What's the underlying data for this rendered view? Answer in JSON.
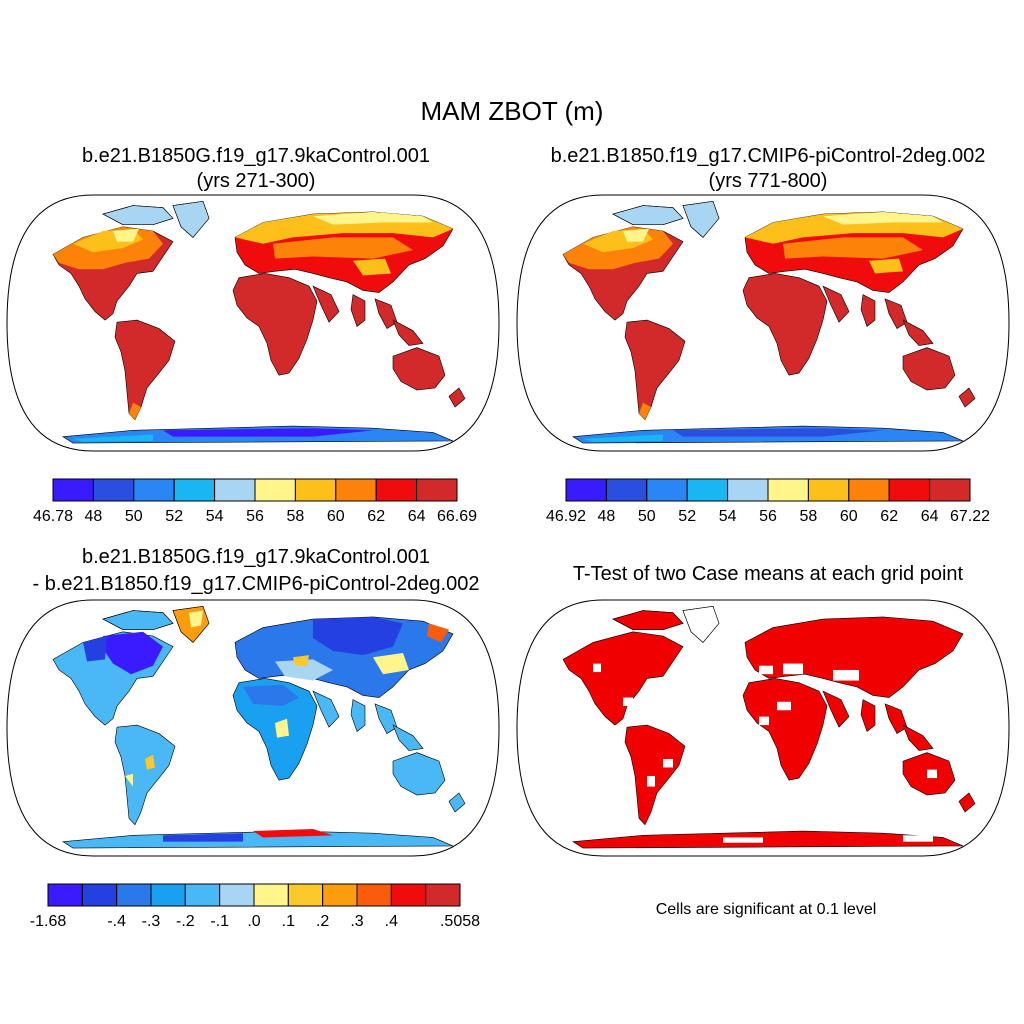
{
  "figure": {
    "title": "MAM ZBOT (m)"
  },
  "panels": [
    {
      "id": "case1",
      "title_line1": "b.e21.B1850G.f19_g17.9kaControl.001",
      "title_line2": "(yrs 271-300)",
      "colorbar": {
        "colors": [
          "#3a1bff",
          "#2a4ee0",
          "#2b86f5",
          "#18b6f3",
          "#a8d5f2",
          "#fff58a",
          "#fdbf1a",
          "#fd8209",
          "#f00c0c",
          "#d22a2a"
        ],
        "labels": [
          "46.78",
          "48",
          "50",
          "52",
          "54",
          "56",
          "58",
          "60",
          "62",
          "64",
          "66.69"
        ]
      }
    },
    {
      "id": "case2",
      "title_line1": "b.e21.B1850.f19_g17.CMIP6-piControl-2deg.002",
      "title_line2": "(yrs 771-800)",
      "colorbar": {
        "colors": [
          "#3a1bff",
          "#2a4ee0",
          "#2b86f5",
          "#18b6f3",
          "#a8d5f2",
          "#fff58a",
          "#fdbf1a",
          "#fd8209",
          "#f00c0c",
          "#d22a2a"
        ],
        "labels": [
          "46.92",
          "48",
          "50",
          "52",
          "54",
          "56",
          "58",
          "60",
          "62",
          "64",
          "67.22"
        ]
      }
    },
    {
      "id": "diff",
      "title_line1": "b.e21.B1850G.f19_g17.9kaControl.001",
      "title_line2": "- b.e21.B1850.f19_g17.CMIP6-piControl-2deg.002",
      "colorbar": {
        "colors": [
          "#3a1bff",
          "#2440e0",
          "#2b78ea",
          "#19a0f0",
          "#4ab8f5",
          "#a8d5f2",
          "#fff58a",
          "#fdc829",
          "#fd9c0c",
          "#fb5c0c",
          "#f00c0c",
          "#d22a2a"
        ],
        "labels": [
          "-1.68",
          "",
          "-.4",
          "-.3",
          "-.2",
          "-.1",
          ".0",
          ".1",
          ".2",
          ".3",
          ".4",
          "",
          ".5058"
        ]
      }
    },
    {
      "id": "ttest",
      "title_line1": "T-Test of two Case means at each grid point",
      "note": "Cells are significant at 0.1 level",
      "significant_color": "#f00000"
    }
  ]
}
